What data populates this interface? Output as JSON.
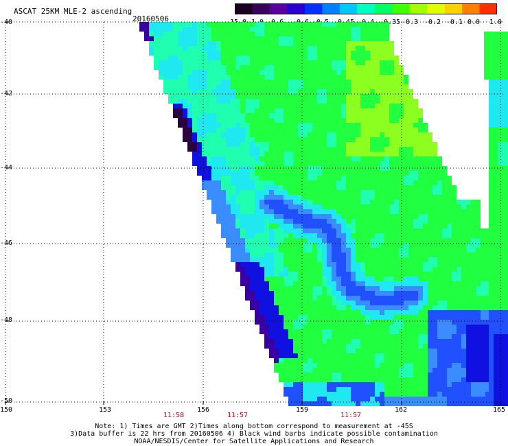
{
  "header": {
    "title": "ASCAT 25KM MLE-2 ascending",
    "date": "20160506"
  },
  "colorbar": {
    "tick_labels": [
      "-15.0",
      "-1.0",
      "-0.6",
      "-0.6",
      "-0.5",
      "-0.45",
      "-0.4",
      "-0.35",
      "-0.3",
      "-0.2",
      "-0.1",
      "0.0",
      "1.0"
    ],
    "colors": [
      "#1a0020",
      "#3a0060",
      "#5a00a0",
      "#2a00d0",
      "#0030ff",
      "#0080ff",
      "#00c8ff",
      "#00ffc0",
      "#00ff60",
      "#40ff00",
      "#a0ff00",
      "#e0ff00",
      "#ffd000",
      "#ff8000",
      "#ff3000"
    ]
  },
  "map": {
    "longitude_labels": [
      "150",
      "153",
      "156",
      "159",
      "162",
      "165"
    ],
    "latitude_labels": [
      "-40",
      "-42",
      "-44",
      "-46",
      "-48",
      "-50"
    ],
    "pass_times": [
      "11:58",
      "11:57",
      "11:57"
    ],
    "palette": {
      "deep": "#2a0040",
      "purple": "#3a00a0",
      "dark_blue": "#1010e0",
      "blue": "#2050ff",
      "mid_blue": "#3a8cff",
      "cyan": "#20e8f0",
      "aqua": "#20ffb0",
      "green": "#20ff40",
      "lime": "#8cff20"
    }
  },
  "notes": [
    "Note: 1) Times are GMT 2)Times along bottom correspond to measurement at -45S",
    "3)Data buffer is 22 hrs from 20160506 4) Black wind barbs indicate possible contamination",
    "NOAA/NESDIS/Center for Satellite Applications and Research"
  ]
}
